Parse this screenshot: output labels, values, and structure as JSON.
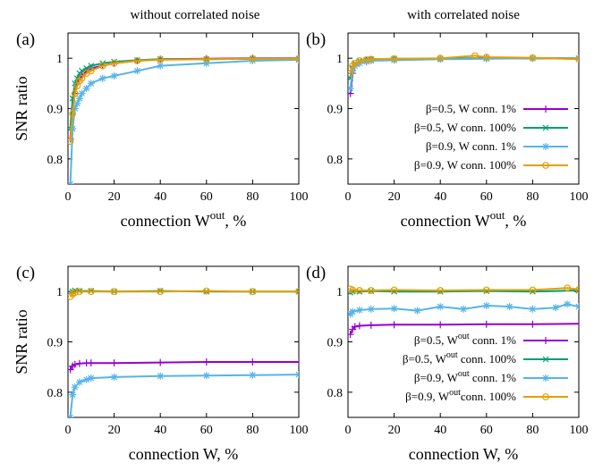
{
  "column_titles": [
    "without correlated noise",
    "with correlated noise"
  ],
  "colors": {
    "purple": "#9400d3",
    "green": "#009e73",
    "cyan": "#56b4e9",
    "orange": "#e69f00"
  },
  "legend_top": [
    {
      "text": "β=0.5, W conn. 1%",
      "color": "#9400d3",
      "marker": "plus"
    },
    {
      "text": "β=0.5, W conn. 100%",
      "color": "#009e73",
      "marker": "x"
    },
    {
      "text": "β=0.9, W conn. 1%",
      "color": "#56b4e9",
      "marker": "star"
    },
    {
      "text": "β=0.9, W conn. 100%",
      "color": "#e69f00",
      "marker": "circle"
    }
  ],
  "legend_bottom": [
    {
      "pre": "β=0.5, W",
      "sup": "out",
      "post": " conn. 1%",
      "color": "#9400d3",
      "marker": "plus"
    },
    {
      "pre": "β=0.5, W",
      "sup": "out",
      "post": " conn. 100%",
      "color": "#009e73",
      "marker": "x"
    },
    {
      "pre": "β=0.9, W",
      "sup": "out",
      "post": " conn. 1%",
      "color": "#56b4e9",
      "marker": "star"
    },
    {
      "pre": "β=0.9, W",
      "sup": "out",
      "post": "conn. 100%",
      "color": "#e69f00",
      "marker": "circle"
    }
  ],
  "chart_data": [
    {
      "type": "line",
      "panel_label": "(a)",
      "xlabel": "connection W",
      "xlabel_sup": "out",
      "xlabel_suffix": ", %",
      "ylabel": "SNR ratio",
      "xlim": [
        0,
        100
      ],
      "ylim": [
        0.75,
        1.05
      ],
      "xticks": [
        0,
        20,
        40,
        60,
        80,
        100
      ],
      "yticks": [
        0.8,
        0.9,
        1.0
      ],
      "ytick_labels": [
        "0.8",
        "0.9",
        "1"
      ],
      "series": [
        {
          "color": "#9400d3",
          "marker": "plus",
          "points": [
            [
              1,
              0.84
            ],
            [
              2,
              0.9
            ],
            [
              3,
              0.93
            ],
            [
              4,
              0.95
            ],
            [
              5,
              0.96
            ],
            [
              6,
              0.965
            ],
            [
              8,
              0.975
            ],
            [
              10,
              0.98
            ],
            [
              15,
              0.985
            ],
            [
              20,
              0.99
            ],
            [
              30,
              0.995
            ],
            [
              40,
              0.998
            ],
            [
              60,
              0.999
            ],
            [
              80,
              1.0
            ],
            [
              100,
              1.0
            ]
          ]
        },
        {
          "color": "#009e73",
          "marker": "x",
          "points": [
            [
              1,
              0.86
            ],
            [
              2,
              0.92
            ],
            [
              3,
              0.95
            ],
            [
              4,
              0.96
            ],
            [
              5,
              0.97
            ],
            [
              6,
              0.975
            ],
            [
              8,
              0.98
            ],
            [
              10,
              0.985
            ],
            [
              15,
              0.99
            ],
            [
              20,
              0.993
            ],
            [
              30,
              0.996
            ],
            [
              40,
              0.998
            ],
            [
              60,
              0.998
            ],
            [
              80,
              0.999
            ],
            [
              100,
              0.999
            ]
          ]
        },
        {
          "color": "#56b4e9",
          "marker": "star",
          "points": [
            [
              1,
              0.75
            ],
            [
              2,
              0.86
            ],
            [
              3,
              0.9
            ],
            [
              4,
              0.91
            ],
            [
              5,
              0.92
            ],
            [
              6,
              0.93
            ],
            [
              8,
              0.94
            ],
            [
              10,
              0.95
            ],
            [
              15,
              0.96
            ],
            [
              20,
              0.965
            ],
            [
              30,
              0.975
            ],
            [
              40,
              0.985
            ],
            [
              60,
              0.99
            ],
            [
              80,
              0.995
            ],
            [
              100,
              0.997
            ]
          ]
        },
        {
          "color": "#e69f00",
          "marker": "circle",
          "points": [
            [
              1,
              0.835
            ],
            [
              2,
              0.89
            ],
            [
              3,
              0.93
            ],
            [
              4,
              0.945
            ],
            [
              5,
              0.955
            ],
            [
              6,
              0.96
            ],
            [
              8,
              0.97
            ],
            [
              10,
              0.975
            ],
            [
              15,
              0.985
            ],
            [
              20,
              0.99
            ],
            [
              30,
              0.995
            ],
            [
              40,
              0.997
            ],
            [
              60,
              0.998
            ],
            [
              80,
              0.999
            ],
            [
              100,
              0.999
            ]
          ]
        }
      ]
    },
    {
      "type": "line",
      "panel_label": "(b)",
      "xlabel": "connection W",
      "xlabel_sup": "out",
      "xlabel_suffix": ", %",
      "ylabel": "",
      "xlim": [
        0,
        100
      ],
      "ylim": [
        0.75,
        1.05
      ],
      "xticks": [
        0,
        20,
        40,
        60,
        80,
        100
      ],
      "yticks": [
        0.8,
        0.9,
        1.0
      ],
      "ytick_labels": [
        "0.8",
        "0.9",
        "1"
      ],
      "series": [
        {
          "color": "#9400d3",
          "marker": "plus",
          "points": [
            [
              1,
              0.93
            ],
            [
              2,
              0.97
            ],
            [
              3,
              0.985
            ],
            [
              5,
              0.99
            ],
            [
              8,
              0.995
            ],
            [
              10,
              0.997
            ],
            [
              20,
              0.998
            ],
            [
              40,
              0.999
            ],
            [
              60,
              1.0
            ],
            [
              80,
              1.0
            ],
            [
              100,
              1.0
            ]
          ]
        },
        {
          "color": "#009e73",
          "marker": "x",
          "points": [
            [
              1,
              0.96
            ],
            [
              2,
              0.98
            ],
            [
              3,
              0.99
            ],
            [
              5,
              0.995
            ],
            [
              8,
              0.997
            ],
            [
              10,
              0.998
            ],
            [
              20,
              0.999
            ],
            [
              40,
              0.999
            ],
            [
              60,
              1.0
            ],
            [
              80,
              1.0
            ],
            [
              100,
              1.0
            ]
          ]
        },
        {
          "color": "#56b4e9",
          "marker": "star",
          "points": [
            [
              1,
              0.94
            ],
            [
              2,
              0.975
            ],
            [
              3,
              0.985
            ],
            [
              5,
              0.99
            ],
            [
              8,
              0.993
            ],
            [
              10,
              0.995
            ],
            [
              20,
              0.996
            ],
            [
              40,
              0.998
            ],
            [
              60,
              0.999
            ],
            [
              80,
              1.0
            ],
            [
              100,
              1.0
            ]
          ]
        },
        {
          "color": "#e69f00",
          "marker": "circle",
          "points": [
            [
              1,
              0.97
            ],
            [
              2,
              0.985
            ],
            [
              3,
              0.99
            ],
            [
              5,
              0.995
            ],
            [
              8,
              0.997
            ],
            [
              10,
              0.998
            ],
            [
              20,
              0.999
            ],
            [
              40,
              1.0
            ],
            [
              55,
              1.005
            ],
            [
              60,
              1.002
            ],
            [
              80,
              1.001
            ],
            [
              100,
              0.998
            ]
          ]
        }
      ]
    },
    {
      "type": "line",
      "panel_label": "(c)",
      "xlabel": "connection W",
      "xlabel_sup": "",
      "xlabel_suffix": ", %",
      "ylabel": "SNR ratio",
      "xlim": [
        0,
        100
      ],
      "ylim": [
        0.75,
        1.05
      ],
      "xticks": [
        0,
        20,
        40,
        60,
        80,
        100
      ],
      "yticks": [
        0.8,
        0.9,
        1.0
      ],
      "ytick_labels": [
        "0.8",
        "0.9",
        "1"
      ],
      "series": [
        {
          "color": "#9400d3",
          "marker": "plus",
          "points": [
            [
              1,
              0.845
            ],
            [
              2,
              0.852
            ],
            [
              3,
              0.855
            ],
            [
              5,
              0.857
            ],
            [
              8,
              0.858
            ],
            [
              10,
              0.858
            ],
            [
              20,
              0.858
            ],
            [
              40,
              0.859
            ],
            [
              60,
              0.86
            ],
            [
              80,
              0.86
            ],
            [
              100,
              0.86
            ]
          ]
        },
        {
          "color": "#009e73",
          "marker": "x",
          "points": [
            [
              1,
              0.998
            ],
            [
              2,
              1.0
            ],
            [
              3,
              1.002
            ],
            [
              5,
              1.001
            ],
            [
              10,
              1.001
            ],
            [
              20,
              1.0
            ],
            [
              40,
              1.001
            ],
            [
              60,
              1.0
            ],
            [
              80,
              1.0
            ],
            [
              100,
              1.0
            ]
          ]
        },
        {
          "color": "#56b4e9",
          "marker": "star",
          "points": [
            [
              1,
              0.75
            ],
            [
              2,
              0.795
            ],
            [
              3,
              0.81
            ],
            [
              5,
              0.82
            ],
            [
              8,
              0.825
            ],
            [
              10,
              0.828
            ],
            [
              20,
              0.83
            ],
            [
              40,
              0.832
            ],
            [
              60,
              0.833
            ],
            [
              80,
              0.834
            ],
            [
              100,
              0.835
            ]
          ]
        },
        {
          "color": "#e69f00",
          "marker": "circle",
          "points": [
            [
              1,
              0.99
            ],
            [
              2,
              0.995
            ],
            [
              3,
              0.998
            ],
            [
              5,
              1.0
            ],
            [
              10,
              1.0
            ],
            [
              20,
              1.0
            ],
            [
              40,
              1.0
            ],
            [
              60,
              1.001
            ],
            [
              80,
              1.0
            ],
            [
              100,
              1.0
            ]
          ]
        }
      ]
    },
    {
      "type": "line",
      "panel_label": "(d)",
      "xlabel": "connection W",
      "xlabel_sup": "",
      "xlabel_suffix": ", %",
      "ylabel": "",
      "xlim": [
        0,
        100
      ],
      "ylim": [
        0.75,
        1.05
      ],
      "xticks": [
        0,
        20,
        40,
        60,
        80,
        100
      ],
      "yticks": [
        0.8,
        0.9,
        1.0
      ],
      "ytick_labels": [
        "0.8",
        "0.9",
        "1"
      ],
      "series": [
        {
          "color": "#9400d3",
          "marker": "plus",
          "points": [
            [
              1,
              0.915
            ],
            [
              2,
              0.925
            ],
            [
              3,
              0.93
            ],
            [
              5,
              0.932
            ],
            [
              10,
              0.933
            ],
            [
              20,
              0.934
            ],
            [
              40,
              0.934
            ],
            [
              60,
              0.935
            ],
            [
              80,
              0.935
            ],
            [
              100,
              0.936
            ]
          ]
        },
        {
          "color": "#009e73",
          "marker": "x",
          "points": [
            [
              1,
              0.998
            ],
            [
              2,
              1.0
            ],
            [
              5,
              1.0
            ],
            [
              10,
              1.001
            ],
            [
              20,
              1.0
            ],
            [
              40,
              1.0
            ],
            [
              60,
              1.001
            ],
            [
              80,
              1.0
            ],
            [
              100,
              1.002
            ]
          ]
        },
        {
          "color": "#56b4e9",
          "marker": "star",
          "points": [
            [
              1,
              0.955
            ],
            [
              2,
              0.96
            ],
            [
              5,
              0.963
            ],
            [
              10,
              0.965
            ],
            [
              20,
              0.966
            ],
            [
              30,
              0.962
            ],
            [
              40,
              0.97
            ],
            [
              50,
              0.965
            ],
            [
              60,
              0.972
            ],
            [
              70,
              0.97
            ],
            [
              80,
              0.965
            ],
            [
              90,
              0.968
            ],
            [
              95,
              0.975
            ],
            [
              100,
              0.97
            ]
          ]
        },
        {
          "color": "#e69f00",
          "marker": "circle",
          "points": [
            [
              1,
              1.005
            ],
            [
              2,
              1.003
            ],
            [
              5,
              1.002
            ],
            [
              10,
              1.002
            ],
            [
              20,
              1.003
            ],
            [
              40,
              1.002
            ],
            [
              60,
              1.003
            ],
            [
              80,
              1.003
            ],
            [
              95,
              1.007
            ],
            [
              100,
              1.004
            ]
          ]
        }
      ]
    }
  ]
}
